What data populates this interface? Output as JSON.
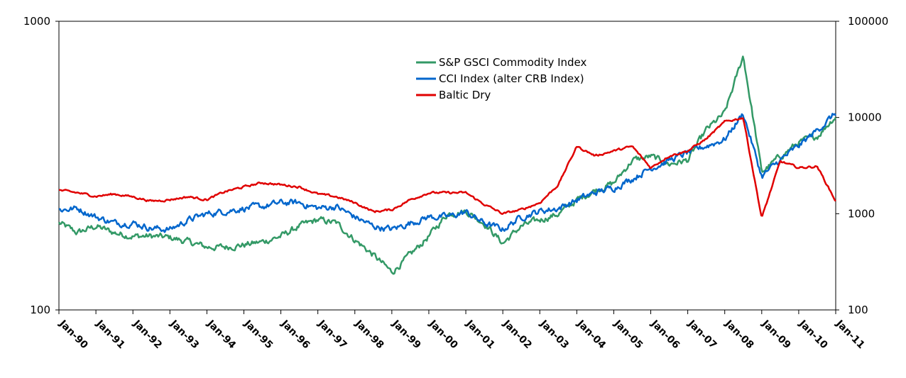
{
  "chart_data": {
    "type": "line",
    "title": "",
    "xlabel": "",
    "ylabel": "",
    "x_tick_labels": [
      "Jan-90",
      "Jan-91",
      "Jan-92",
      "Jan-93",
      "Jan-94",
      "Jan-95",
      "Jan-96",
      "Jan-97",
      "Jan-98",
      "Jan-99",
      "Jan-00",
      "Jan-01",
      "Jan-02",
      "Jan-03",
      "Jan-04",
      "Jan-05",
      "Jan-06",
      "Jan-07",
      "Jan-08",
      "Jan-09",
      "Jan-10",
      "Jan-11"
    ],
    "x_range": [
      "Jan-90",
      "Jan-11"
    ],
    "y_left": {
      "scale": "log",
      "range": [
        100,
        1000
      ],
      "tick_labels": [
        "100",
        "1000"
      ]
    },
    "y_right": {
      "scale": "log",
      "range": [
        100,
        100000
      ],
      "tick_labels": [
        "100",
        "1000",
        "10000",
        "100000"
      ]
    },
    "grid": false,
    "legend_position": "top-center",
    "dates": [
      "Jan-90",
      "Jul-90",
      "Jan-91",
      "Jul-91",
      "Jan-92",
      "Jul-92",
      "Jan-93",
      "Jul-93",
      "Jan-94",
      "Jul-94",
      "Jan-95",
      "Jul-95",
      "Jan-96",
      "Jul-96",
      "Jan-97",
      "Jul-97",
      "Jan-98",
      "Jul-98",
      "Jan-99",
      "Jul-99",
      "Jan-00",
      "Jul-00",
      "Jan-01",
      "Jul-01",
      "Jan-02",
      "Jul-02",
      "Jan-03",
      "Jul-03",
      "Jan-04",
      "Jul-04",
      "Jan-05",
      "Jul-05",
      "Jan-06",
      "Jul-06",
      "Jan-07",
      "Jul-07",
      "Jan-08",
      "Jul-08",
      "Jan-09",
      "Jul-09",
      "Jan-10",
      "Jul-10",
      "Jan-11"
    ],
    "series": [
      {
        "name": "S&P GSCI Commodity Index",
        "axis": "left",
        "color": "#339966",
        "values": [
          200,
          185,
          195,
          185,
          180,
          180,
          178,
          172,
          165,
          165,
          168,
          172,
          180,
          195,
          205,
          200,
          175,
          155,
          135,
          155,
          180,
          215,
          220,
          200,
          170,
          195,
          205,
          215,
          240,
          260,
          275,
          330,
          340,
          320,
          330,
          420,
          480,
          760,
          300,
          340,
          380,
          400,
          470
        ]
      },
      {
        "name": "CCI Index (alter CRB Index)",
        "axis": "left",
        "color": "#0066CC",
        "values": [
          222,
          225,
          210,
          200,
          200,
          192,
          190,
          205,
          215,
          220,
          225,
          228,
          235,
          235,
          225,
          228,
          210,
          195,
          190,
          200,
          210,
          210,
          218,
          200,
          190,
          210,
          220,
          225,
          240,
          255,
          265,
          285,
          310,
          330,
          350,
          370,
          390,
          480,
          290,
          330,
          370,
          420,
          480
        ]
      },
      {
        "name": "Baltic Dry",
        "axis": "right",
        "color": "#E00000",
        "values": [
          1750,
          1650,
          1520,
          1600,
          1500,
          1350,
          1400,
          1500,
          1400,
          1700,
          1900,
          2100,
          2000,
          1900,
          1600,
          1500,
          1300,
          1050,
          1100,
          1400,
          1650,
          1650,
          1650,
          1250,
          1000,
          1100,
          1300,
          2000,
          5000,
          4000,
          4500,
          5000,
          3000,
          4000,
          4500,
          6000,
          9000,
          10000,
          900,
          3500,
          3000,
          3100,
          1350
        ]
      }
    ]
  }
}
